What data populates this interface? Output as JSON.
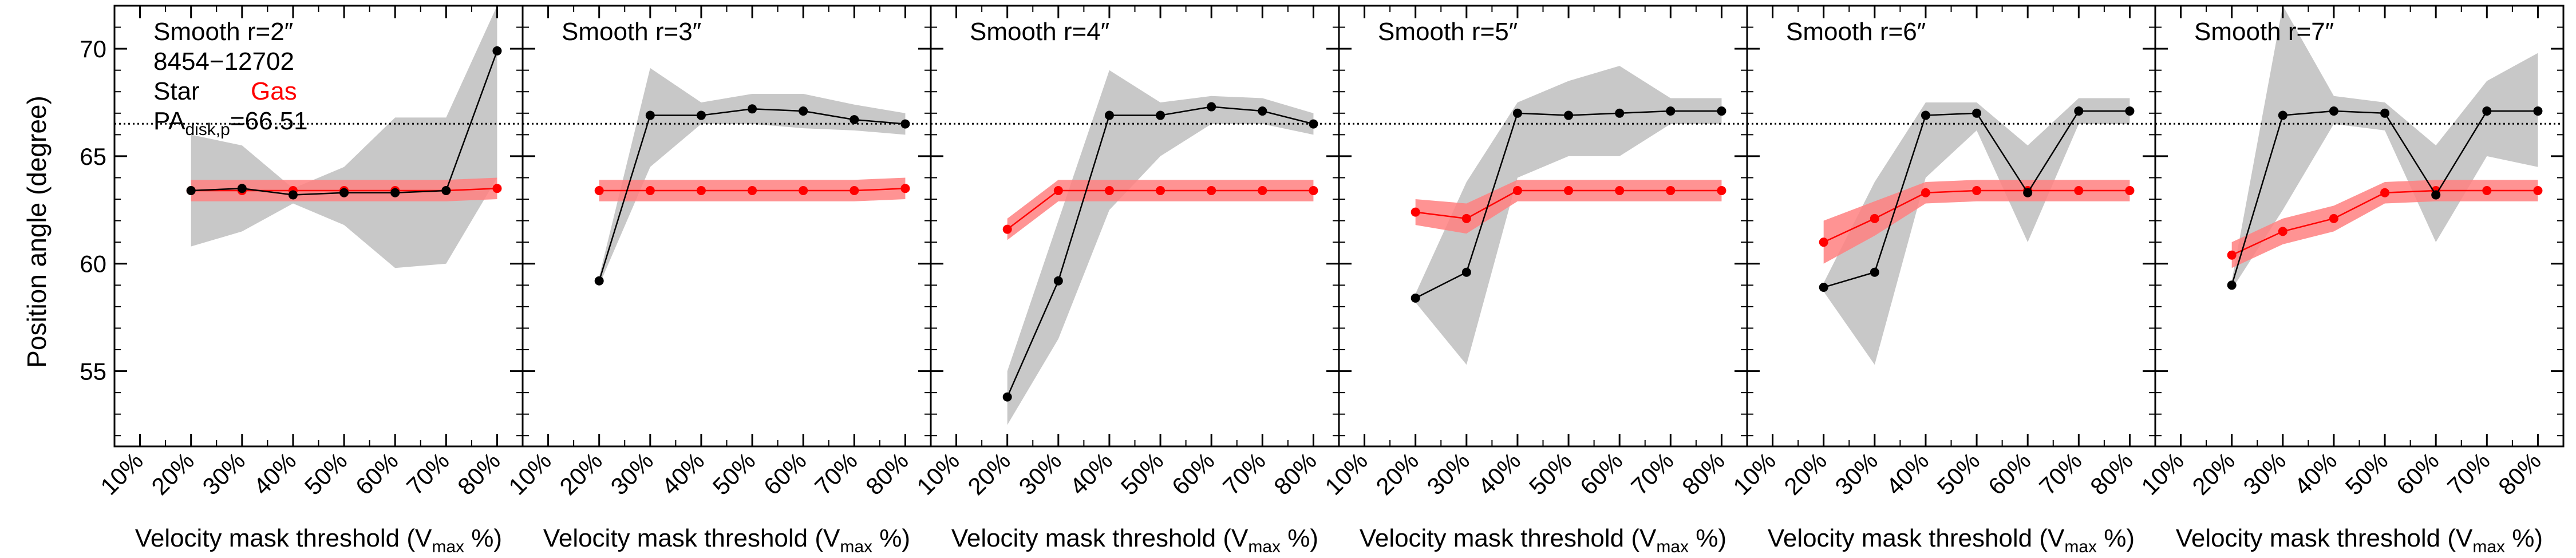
{
  "figure": {
    "object_id": "8454−12702",
    "legend_star": "Star",
    "legend_gas": "Gas",
    "pa_label_main": "PA",
    "pa_label_sub": "disk,p",
    "pa_label_value": "=66.51",
    "ylabel": "Position angle (degree)",
    "xlabel_main": "Velocity mask threshold (V",
    "xlabel_sub": "max",
    "xlabel_end": " %)",
    "colors": {
      "star": "#000000",
      "gas": "#ff0000",
      "gas_band": "#ff8080",
      "star_band": "#c8c8c8",
      "ref_line": "#000000"
    }
  },
  "chart_data": [
    {
      "type": "line",
      "title": "Smooth r=2″",
      "x": [
        20,
        30,
        40,
        50,
        60,
        70,
        80
      ],
      "x_ticks": [
        "10%",
        "20%",
        "30%",
        "40%",
        "50%",
        "60%",
        "70%",
        "80%"
      ],
      "xlim": [
        5,
        85
      ],
      "ylim": [
        51.5,
        72
      ],
      "y_ticks": [
        55,
        60,
        65,
        70
      ],
      "reference_line": 66.51,
      "series": [
        {
          "name": "Star",
          "values": [
            63.4,
            63.5,
            63.2,
            63.3,
            63.3,
            63.4,
            69.9
          ],
          "band_low": [
            60.8,
            61.5,
            62.8,
            61.8,
            59.8,
            60.0,
            64.0
          ],
          "band_high": [
            66.0,
            65.5,
            63.5,
            64.5,
            66.8,
            66.8,
            72.0
          ]
        },
        {
          "name": "Gas",
          "values": [
            63.4,
            63.4,
            63.4,
            63.4,
            63.4,
            63.4,
            63.5
          ],
          "band_low": [
            62.9,
            62.9,
            62.9,
            62.9,
            62.9,
            62.9,
            63.0
          ],
          "band_high": [
            63.9,
            63.9,
            63.9,
            63.9,
            63.9,
            63.9,
            64.0
          ]
        }
      ]
    },
    {
      "type": "line",
      "title": "Smooth r=3″",
      "x": [
        20,
        30,
        40,
        50,
        60,
        70,
        80
      ],
      "x_ticks": [
        "10%",
        "20%",
        "30%",
        "40%",
        "50%",
        "60%",
        "70%",
        "80%"
      ],
      "xlim": [
        5,
        85
      ],
      "ylim": [
        51.5,
        72
      ],
      "y_ticks": [
        55,
        60,
        65,
        70
      ],
      "reference_line": 66.51,
      "series": [
        {
          "name": "Star",
          "values": [
            59.2,
            66.9,
            66.9,
            67.2,
            67.1,
            66.7,
            66.5
          ],
          "band_low": [
            59.0,
            64.5,
            66.5,
            66.5,
            66.3,
            66.2,
            66.0
          ],
          "band_high": [
            59.4,
            69.1,
            67.5,
            67.9,
            67.9,
            67.4,
            67.0
          ]
        },
        {
          "name": "Gas",
          "values": [
            63.4,
            63.4,
            63.4,
            63.4,
            63.4,
            63.4,
            63.5
          ],
          "band_low": [
            62.9,
            62.9,
            62.9,
            62.9,
            62.9,
            62.9,
            63.0
          ],
          "band_high": [
            63.9,
            63.9,
            63.9,
            63.9,
            63.9,
            63.9,
            64.0
          ]
        }
      ]
    },
    {
      "type": "line",
      "title": "Smooth r=4″",
      "x": [
        20,
        30,
        40,
        50,
        60,
        70,
        80
      ],
      "x_ticks": [
        "10%",
        "20%",
        "30%",
        "40%",
        "50%",
        "60%",
        "70%",
        "80%"
      ],
      "xlim": [
        5,
        85
      ],
      "ylim": [
        51.5,
        72
      ],
      "y_ticks": [
        55,
        60,
        65,
        70
      ],
      "reference_line": 66.51,
      "series": [
        {
          "name": "Star",
          "values": [
            53.8,
            59.2,
            66.9,
            66.9,
            67.3,
            67.1,
            66.5
          ],
          "band_low": [
            52.5,
            56.5,
            62.5,
            65.0,
            66.5,
            66.5,
            66.0
          ],
          "band_high": [
            55.0,
            62.0,
            69.0,
            67.5,
            67.8,
            67.7,
            67.0
          ]
        },
        {
          "name": "Gas",
          "values": [
            61.6,
            63.4,
            63.4,
            63.4,
            63.4,
            63.4,
            63.4
          ],
          "band_low": [
            61.1,
            62.9,
            62.9,
            62.9,
            62.9,
            62.9,
            62.9
          ],
          "band_high": [
            62.1,
            63.9,
            63.9,
            63.9,
            63.9,
            63.9,
            63.9
          ]
        }
      ]
    },
    {
      "type": "line",
      "title": "Smooth r=5″",
      "x": [
        20,
        30,
        40,
        50,
        60,
        70,
        80
      ],
      "x_ticks": [
        "10%",
        "20%",
        "30%",
        "40%",
        "50%",
        "60%",
        "70%",
        "80%"
      ],
      "xlim": [
        5,
        85
      ],
      "ylim": [
        51.5,
        72
      ],
      "y_ticks": [
        55,
        60,
        65,
        70
      ],
      "reference_line": 66.51,
      "series": [
        {
          "name": "Star",
          "values": [
            58.4,
            59.6,
            67.0,
            66.9,
            67.0,
            67.1,
            67.1
          ],
          "band_low": [
            58.2,
            55.3,
            64.0,
            65.0,
            65.0,
            66.5,
            66.5
          ],
          "band_high": [
            58.6,
            63.8,
            67.5,
            68.5,
            69.2,
            67.7,
            67.7
          ]
        },
        {
          "name": "Gas",
          "values": [
            62.4,
            62.1,
            63.4,
            63.4,
            63.4,
            63.4,
            63.4
          ],
          "band_low": [
            61.8,
            61.4,
            62.9,
            62.9,
            62.9,
            62.9,
            62.9
          ],
          "band_high": [
            63.0,
            62.8,
            63.9,
            63.9,
            63.9,
            63.9,
            63.9
          ]
        }
      ]
    },
    {
      "type": "line",
      "title": "Smooth r=6″",
      "x": [
        20,
        30,
        40,
        50,
        60,
        70,
        80
      ],
      "x_ticks": [
        "10%",
        "20%",
        "30%",
        "40%",
        "50%",
        "60%",
        "70%",
        "80%"
      ],
      "xlim": [
        5,
        85
      ],
      "ylim": [
        51.5,
        72
      ],
      "y_ticks": [
        55,
        60,
        65,
        70
      ],
      "reference_line": 66.51,
      "series": [
        {
          "name": "Star",
          "values": [
            58.9,
            59.6,
            66.9,
            67.0,
            63.3,
            67.1,
            67.1
          ],
          "band_low": [
            58.7,
            55.3,
            64.0,
            66.2,
            61.0,
            66.5,
            66.5
          ],
          "band_high": [
            59.1,
            63.8,
            67.5,
            67.5,
            65.5,
            67.7,
            67.7
          ]
        },
        {
          "name": "Gas",
          "values": [
            61.0,
            62.1,
            63.3,
            63.4,
            63.4,
            63.4,
            63.4
          ],
          "band_low": [
            60.0,
            61.3,
            62.8,
            62.9,
            62.9,
            62.9,
            62.9
          ],
          "band_high": [
            62.0,
            62.9,
            63.8,
            63.9,
            63.9,
            63.9,
            63.9
          ]
        }
      ]
    },
    {
      "type": "line",
      "title": "Smooth r=7″",
      "x": [
        20,
        30,
        40,
        50,
        60,
        70,
        80
      ],
      "x_ticks": [
        "10%",
        "20%",
        "30%",
        "40%",
        "50%",
        "60%",
        "70%",
        "80%"
      ],
      "xlim": [
        5,
        85
      ],
      "ylim": [
        51.5,
        72
      ],
      "y_ticks": [
        55,
        60,
        65,
        70
      ],
      "reference_line": 66.51,
      "series": [
        {
          "name": "Star",
          "values": [
            59.0,
            66.9,
            67.1,
            67.0,
            63.2,
            67.1,
            67.1
          ],
          "band_low": [
            58.8,
            62.5,
            66.5,
            66.2,
            61.0,
            65.0,
            64.5
          ],
          "band_high": [
            59.2,
            72.0,
            67.8,
            67.5,
            65.5,
            68.5,
            69.8
          ]
        },
        {
          "name": "Gas",
          "values": [
            60.4,
            61.5,
            62.1,
            63.3,
            63.4,
            63.4,
            63.4
          ],
          "band_low": [
            59.8,
            60.9,
            61.5,
            62.8,
            62.9,
            62.9,
            62.9
          ],
          "band_high": [
            61.0,
            62.1,
            62.7,
            63.8,
            63.9,
            63.9,
            63.9
          ]
        }
      ]
    }
  ]
}
